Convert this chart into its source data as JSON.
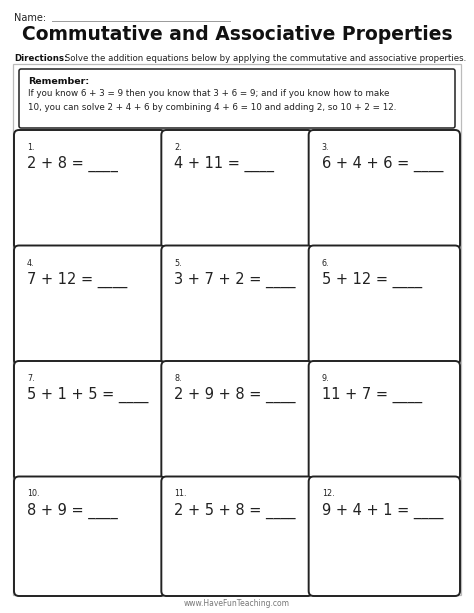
{
  "title": "Commutative and Associative Properties",
  "name_label": "Name:",
  "directions_bold": "Directions:",
  "directions_rest": " Solve the addition equations below by applying the commutative and associative properties.",
  "remember_title": "Remember:",
  "remember_line1": "If you know 6 + 3 = 9 then you know that 3 + 6 = 9; and if you know how to make",
  "remember_line2": "10, you can solve 2 + 4 + 6 by combining 4 + 6 = 10 and adding 2, so 10 + 2 = 12.",
  "footer": "www.HaveFunTeaching.com",
  "problems": [
    {
      "num": "1.",
      "eq": "2 + 8 = ____"
    },
    {
      "num": "2.",
      "eq": "4 + 11 = ____"
    },
    {
      "num": "3.",
      "eq": "6 + 4 + 6 = ____"
    },
    {
      "num": "4.",
      "eq": "7 + 12 = ____"
    },
    {
      "num": "5.",
      "eq": "3 + 7 + 2 = ____"
    },
    {
      "num": "6.",
      "eq": "5 + 12 = ____"
    },
    {
      "num": "7.",
      "eq": "5 + 1 + 5 = ____"
    },
    {
      "num": "8.",
      "eq": "2 + 9 + 8 = ____"
    },
    {
      "num": "9.",
      "eq": "11 + 7 = ____"
    },
    {
      "num": "10.",
      "eq": "8 + 9 = ____"
    },
    {
      "num": "11.",
      "eq": "2 + 5 + 8 = ____"
    },
    {
      "num": "12.",
      "eq": "9 + 4 + 1 = ____"
    }
  ],
  "bg_color": "#ffffff",
  "outer_border_color": "#bbbbbb",
  "cell_border_color": "#222222",
  "remember_border_color": "#222222",
  "title_color": "#111111",
  "text_color": "#222222",
  "name_line_color": "#999999",
  "footer_color": "#777777"
}
